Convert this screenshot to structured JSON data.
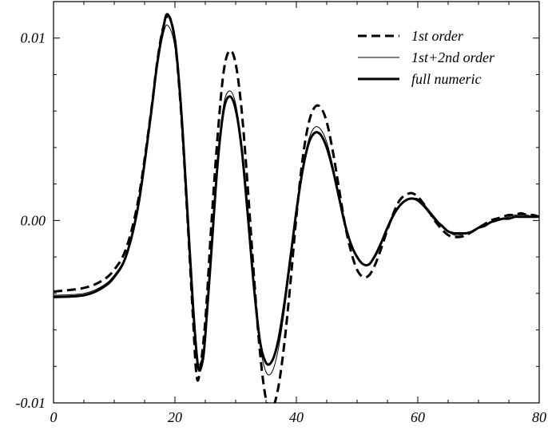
{
  "chart_data": {
    "type": "line",
    "title": "",
    "xlabel": "",
    "ylabel": "",
    "xlim": [
      0,
      80
    ],
    "ylim": [
      -0.01,
      0.012
    ],
    "xticks": [
      0,
      20,
      40,
      60,
      80
    ],
    "xtick_labels": [
      "0",
      "20",
      "40",
      "60",
      "80"
    ],
    "yticks": [
      -0.01,
      0.0,
      0.01
    ],
    "ytick_labels": [
      "-0.01",
      "0.00",
      "0.01"
    ],
    "grid": false,
    "legend_position": "top-right",
    "series": [
      {
        "name": "1st order",
        "style": "dashed",
        "color": "#000000",
        "x": [
          0,
          5,
          8,
          10,
          12,
          14,
          16,
          17,
          18,
          19,
          20,
          21,
          22,
          23,
          23.5,
          24,
          25,
          26,
          27,
          28,
          29,
          30,
          31,
          32,
          33,
          34,
          35,
          36,
          37,
          38,
          39,
          40,
          41,
          42,
          43,
          44,
          45,
          46,
          47,
          48,
          49,
          50,
          51,
          52,
          53,
          54,
          55,
          56,
          57,
          58,
          59,
          60,
          61,
          62,
          63,
          64,
          65,
          66,
          67,
          68,
          69,
          70,
          71,
          72,
          73,
          74,
          75,
          76,
          77,
          78,
          79,
          80
        ],
        "values": [
          -0.0039,
          -0.0037,
          -0.0033,
          -0.0027,
          -0.0015,
          0.0012,
          0.0058,
          0.0085,
          0.0105,
          0.0112,
          0.0098,
          0.006,
          0.0005,
          -0.0055,
          -0.0083,
          -0.0085,
          -0.0055,
          -0.0002,
          0.0045,
          0.0081,
          0.0093,
          0.0086,
          0.006,
          0.0018,
          -0.003,
          -0.0072,
          -0.0098,
          -0.0103,
          -0.0092,
          -0.0068,
          -0.0035,
          0.0002,
          0.0033,
          0.0053,
          0.0062,
          0.0062,
          0.0054,
          0.0038,
          0.0018,
          -0.0002,
          -0.0017,
          -0.0027,
          -0.0031,
          -0.003,
          -0.0024,
          -0.0015,
          -0.0005,
          0.0004,
          0.0011,
          0.0014,
          0.0015,
          0.0013,
          0.0009,
          0.0004,
          -0.0001,
          -0.0005,
          -0.0008,
          -0.0009,
          -0.0009,
          -0.0008,
          -0.0006,
          -0.0004,
          -0.0002,
          0.0,
          0.0001,
          0.0002,
          0.0003,
          0.0003,
          0.0004,
          0.0003,
          0.0003,
          0.0002
        ]
      },
      {
        "name": "1st+2nd order",
        "style": "thin",
        "color": "#000000",
        "x": [
          0,
          5,
          8,
          10,
          12,
          14,
          16,
          17,
          18,
          18.8,
          20,
          21,
          22,
          23,
          23.7,
          24.5,
          25,
          26,
          27,
          28,
          29,
          30,
          31,
          32,
          33,
          34,
          35,
          36,
          37,
          38,
          39,
          40,
          41,
          42,
          43,
          44,
          45,
          46,
          47,
          48,
          49,
          50,
          51,
          52,
          53,
          54,
          55,
          56,
          57,
          58,
          59,
          60,
          61,
          62,
          63,
          64,
          65,
          66,
          67,
          68,
          69,
          70,
          71,
          72,
          73,
          74,
          75,
          76,
          77,
          78,
          79,
          80
        ],
        "values": [
          -0.0041,
          -0.004,
          -0.0036,
          -0.003,
          -0.0018,
          0.001,
          0.0056,
          0.0082,
          0.0101,
          0.0107,
          0.0095,
          0.006,
          0.0008,
          -0.0048,
          -0.0077,
          -0.0075,
          -0.0062,
          -0.0015,
          0.0032,
          0.0063,
          0.0071,
          0.0064,
          0.0041,
          0.0004,
          -0.0037,
          -0.0068,
          -0.0083,
          -0.0083,
          -0.0071,
          -0.005,
          -0.0024,
          0.0004,
          0.0028,
          0.0044,
          0.0051,
          0.005,
          0.0043,
          0.003,
          0.0014,
          -0.0001,
          -0.0012,
          -0.002,
          -0.0024,
          -0.0024,
          -0.002,
          -0.0013,
          -0.0005,
          0.0003,
          0.0008,
          0.0011,
          0.0012,
          0.0012,
          0.0009,
          0.0005,
          0.0001,
          -0.0003,
          -0.0006,
          -0.0008,
          -0.0008,
          -0.0007,
          -0.0006,
          -0.0004,
          -0.0002,
          -0.0001,
          0.0,
          0.0001,
          0.0002,
          0.0003,
          0.0003,
          0.0003,
          0.0002,
          0.0002
        ]
      },
      {
        "name": "full numeric",
        "style": "thick",
        "color": "#000000",
        "x": [
          0,
          5,
          8,
          10,
          12,
          14,
          16,
          17,
          18,
          18.8,
          20,
          21,
          22,
          23,
          23.8,
          24.5,
          25,
          26,
          27,
          28,
          29,
          30,
          31,
          32,
          33,
          34,
          35,
          36,
          37,
          38,
          39,
          40,
          41,
          42,
          43,
          44,
          45,
          46,
          47,
          48,
          49,
          50,
          51,
          52,
          53,
          54,
          55,
          56,
          57,
          58,
          59,
          60,
          61,
          62,
          63,
          64,
          65,
          66,
          67,
          68,
          69,
          70,
          71,
          72,
          73,
          74,
          75,
          76,
          77,
          78,
          79,
          80
        ],
        "values": [
          -0.0042,
          -0.0041,
          -0.0037,
          -0.0031,
          -0.0019,
          0.0009,
          0.0057,
          0.0084,
          0.0104,
          0.0113,
          0.0099,
          0.0062,
          0.0008,
          -0.0048,
          -0.008,
          -0.0078,
          -0.0063,
          -0.0017,
          0.003,
          0.006,
          0.0068,
          0.0061,
          0.0039,
          0.0003,
          -0.0036,
          -0.0066,
          -0.0078,
          -0.0077,
          -0.0066,
          -0.0046,
          -0.0021,
          0.0005,
          0.0027,
          0.0042,
          0.0048,
          0.0047,
          0.004,
          0.0028,
          0.0013,
          -0.0002,
          -0.0013,
          -0.002,
          -0.0024,
          -0.0024,
          -0.0019,
          -0.0012,
          -0.0004,
          0.0003,
          0.0008,
          0.0011,
          0.0012,
          0.0011,
          0.0008,
          0.0004,
          0.0,
          -0.0003,
          -0.0006,
          -0.0007,
          -0.0007,
          -0.0007,
          -0.0006,
          -0.0004,
          -0.0003,
          -0.0001,
          0.0,
          0.0001,
          0.0001,
          0.0002,
          0.0002,
          0.0002,
          0.0002,
          0.0002
        ]
      }
    ]
  }
}
